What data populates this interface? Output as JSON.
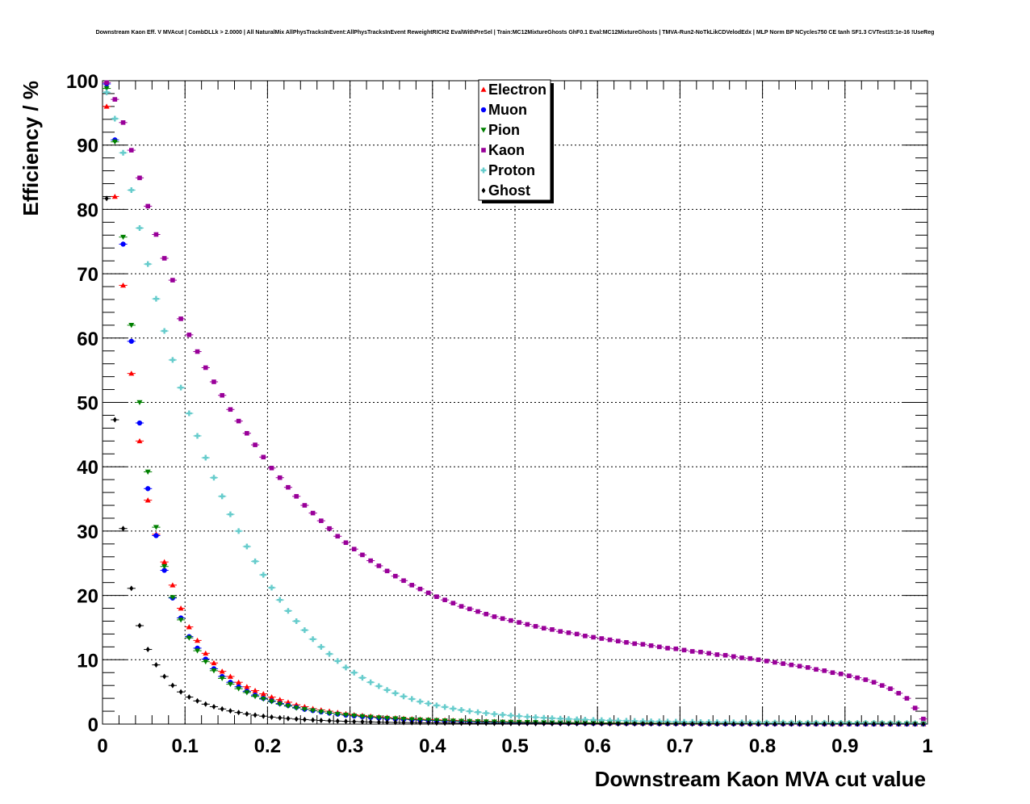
{
  "chart_data": {
    "type": "scatter",
    "title": "Downstream Kaon Eff. V MVAcut | CombDLLk > 2.0000 | All NaturalMix AllPhysTracksInEvent:AllPhysTracksInEvent ReweightRICH2 EvalWithPreSel | Train:MC12MixtureGhosts GhF0.1 Eval:MC12MixtureGhosts | TMVA-Run2-NoTkLikCDVelodEdx | MLP Norm BP NCycles750 CE tanh SF1.3 CVTest15:1e-16 !UseReg",
    "xlabel": "Downstream Kaon MVA cut value",
    "ylabel": "Efficiency / %",
    "xlim": [
      0,
      1
    ],
    "ylim": [
      0,
      100
    ],
    "xticks": [
      "0",
      "0.1",
      "0.2",
      "0.3",
      "0.4",
      "0.5",
      "0.6",
      "0.7",
      "0.8",
      "0.9",
      "1"
    ],
    "yticks": [
      "0",
      "10",
      "20",
      "30",
      "40",
      "50",
      "60",
      "70",
      "80",
      "90",
      "100"
    ],
    "grid": true,
    "legend_position": "top-center",
    "x": [
      0.005,
      0.015,
      0.025,
      0.035,
      0.045,
      0.055,
      0.065,
      0.075,
      0.085,
      0.095,
      0.105,
      0.115,
      0.125,
      0.135,
      0.145,
      0.155,
      0.165,
      0.175,
      0.185,
      0.195,
      0.205,
      0.215,
      0.225,
      0.235,
      0.245,
      0.255,
      0.265,
      0.275,
      0.285,
      0.295,
      0.305,
      0.315,
      0.325,
      0.335,
      0.345,
      0.355,
      0.365,
      0.375,
      0.385,
      0.395,
      0.405,
      0.415,
      0.425,
      0.435,
      0.445,
      0.455,
      0.465,
      0.475,
      0.485,
      0.495,
      0.505,
      0.515,
      0.525,
      0.535,
      0.545,
      0.555,
      0.565,
      0.575,
      0.585,
      0.595,
      0.605,
      0.615,
      0.625,
      0.635,
      0.645,
      0.655,
      0.665,
      0.675,
      0.685,
      0.695,
      0.705,
      0.715,
      0.725,
      0.735,
      0.745,
      0.755,
      0.765,
      0.775,
      0.785,
      0.795,
      0.805,
      0.815,
      0.825,
      0.835,
      0.845,
      0.855,
      0.865,
      0.875,
      0.885,
      0.895,
      0.905,
      0.915,
      0.925,
      0.935,
      0.945,
      0.955,
      0.965,
      0.975,
      0.985,
      0.995
    ],
    "series": [
      {
        "name": "Electron",
        "color": "#ff0000",
        "marker": "triangle-up",
        "values": [
          96.0,
          82.0,
          68.2,
          54.5,
          44.0,
          34.8,
          29.5,
          25.2,
          21.6,
          18.0,
          15.1,
          13.0,
          11.0,
          9.5,
          8.2,
          7.4,
          6.5,
          5.8,
          5.2,
          4.7,
          4.2,
          3.8,
          3.4,
          3.0,
          2.7,
          2.4,
          2.2,
          2.0,
          1.8,
          1.6,
          1.45,
          1.33,
          1.22,
          1.12,
          1.03,
          0.95,
          0.88,
          0.82,
          0.76,
          0.71,
          0.66,
          0.62,
          0.58,
          0.54,
          0.5,
          0.47,
          0.44,
          0.41,
          0.38,
          0.36,
          0.34,
          0.32,
          0.3,
          0.28,
          0.26,
          0.25,
          0.24,
          0.22,
          0.21,
          0.2,
          0.19,
          0.18,
          0.17,
          0.16,
          0.16,
          0.15,
          0.14,
          0.14,
          0.13,
          0.13,
          0.12,
          0.12,
          0.11,
          0.11,
          0.1,
          0.1,
          0.1,
          0.09,
          0.09,
          0.09,
          0.08,
          0.08,
          0.08,
          0.08,
          0.07,
          0.07,
          0.07,
          0.07,
          0.06,
          0.06,
          0.06,
          0.06,
          0.05,
          0.05,
          0.05,
          0.05,
          0.04,
          0.04,
          0.03,
          0.02
        ]
      },
      {
        "name": "Muon",
        "color": "#0000ff",
        "marker": "circle",
        "values": [
          99.5,
          90.8,
          74.6,
          59.5,
          46.8,
          36.6,
          29.3,
          23.9,
          19.6,
          16.5,
          13.6,
          11.8,
          10.1,
          8.6,
          7.4,
          6.5,
          5.8,
          5.1,
          4.5,
          4.0,
          3.6,
          3.2,
          2.9,
          2.6,
          2.3,
          2.1,
          1.9,
          1.7,
          1.55,
          1.4,
          1.27,
          1.15,
          1.05,
          0.96,
          0.88,
          0.8,
          0.73,
          0.67,
          0.62,
          0.57,
          0.52,
          0.48,
          0.44,
          0.41,
          0.38,
          0.35,
          0.32,
          0.3,
          0.28,
          0.26,
          0.24,
          0.22,
          0.21,
          0.2,
          0.18,
          0.17,
          0.16,
          0.15,
          0.14,
          0.13,
          0.12,
          0.12,
          0.11,
          0.1,
          0.1,
          0.09,
          0.09,
          0.08,
          0.08,
          0.07,
          0.07,
          0.07,
          0.06,
          0.06,
          0.06,
          0.05,
          0.05,
          0.05,
          0.05,
          0.04,
          0.04,
          0.04,
          0.04,
          0.04,
          0.03,
          0.03,
          0.03,
          0.03,
          0.03,
          0.03,
          0.02,
          0.02,
          0.02,
          0.02,
          0.02,
          0.02,
          0.02,
          0.01,
          0.01,
          0.01
        ]
      },
      {
        "name": "Pion",
        "color": "#008000",
        "marker": "triangle-down",
        "values": [
          98.8,
          90.5,
          75.7,
          62.0,
          50.0,
          39.2,
          30.6,
          24.5,
          19.7,
          16.2,
          13.4,
          11.4,
          9.7,
          8.3,
          7.1,
          6.2,
          5.5,
          4.9,
          4.3,
          3.9,
          3.5,
          3.1,
          2.8,
          2.5,
          2.3,
          2.1,
          1.9,
          1.7,
          1.55,
          1.42,
          1.3,
          1.19,
          1.09,
          1.0,
          0.92,
          0.85,
          0.78,
          0.72,
          0.67,
          0.62,
          0.57,
          0.53,
          0.49,
          0.46,
          0.43,
          0.4,
          0.37,
          0.35,
          0.33,
          0.31,
          0.29,
          0.27,
          0.26,
          0.24,
          0.23,
          0.22,
          0.21,
          0.2,
          0.19,
          0.18,
          0.17,
          0.16,
          0.15,
          0.15,
          0.14,
          0.13,
          0.13,
          0.12,
          0.12,
          0.11,
          0.11,
          0.1,
          0.1,
          0.1,
          0.09,
          0.09,
          0.09,
          0.08,
          0.08,
          0.08,
          0.08,
          0.07,
          0.07,
          0.07,
          0.07,
          0.06,
          0.06,
          0.06,
          0.06,
          0.06,
          0.05,
          0.05,
          0.05,
          0.05,
          0.05,
          0.04,
          0.04,
          0.04,
          0.03,
          0.02
        ]
      },
      {
        "name": "Kaon",
        "color": "#990099",
        "marker": "square",
        "values": [
          99.7,
          97.1,
          93.5,
          89.2,
          84.9,
          80.5,
          76.1,
          72.4,
          69.0,
          63.0,
          60.5,
          57.9,
          55.4,
          53.2,
          51.1,
          48.9,
          47.1,
          45.2,
          43.4,
          41.5,
          39.8,
          38.3,
          36.8,
          35.4,
          34.0,
          32.8,
          31.6,
          30.4,
          29.2,
          28.2,
          27.2,
          26.3,
          25.4,
          24.6,
          23.8,
          23.0,
          22.3,
          21.6,
          21.0,
          20.4,
          19.8,
          19.3,
          18.8,
          18.3,
          17.9,
          17.5,
          17.1,
          16.7,
          16.4,
          16.1,
          15.8,
          15.5,
          15.2,
          14.9,
          14.7,
          14.4,
          14.2,
          14.0,
          13.7,
          13.5,
          13.3,
          13.1,
          12.9,
          12.7,
          12.5,
          12.4,
          12.2,
          12.0,
          11.8,
          11.7,
          11.5,
          11.3,
          11.2,
          11.0,
          10.8,
          10.7,
          10.5,
          10.3,
          10.2,
          10.0,
          9.8,
          9.6,
          9.4,
          9.2,
          9.0,
          8.8,
          8.5,
          8.3,
          8.0,
          7.8,
          7.5,
          7.2,
          6.9,
          6.5,
          6.0,
          5.5,
          4.8,
          4.0,
          2.5,
          0.8
        ]
      },
      {
        "name": "Proton",
        "color": "#66cccc",
        "marker": "cross",
        "values": [
          98.2,
          94.1,
          88.8,
          83.0,
          77.1,
          71.5,
          66.1,
          61.1,
          56.6,
          52.3,
          48.3,
          44.8,
          41.4,
          38.3,
          35.4,
          32.6,
          30.0,
          27.6,
          25.3,
          23.2,
          21.2,
          19.3,
          17.6,
          16.0,
          14.6,
          13.2,
          12.0,
          10.9,
          9.8,
          8.8,
          8.0,
          7.2,
          6.5,
          5.9,
          5.3,
          4.8,
          4.3,
          3.9,
          3.5,
          3.2,
          2.9,
          2.65,
          2.4,
          2.2,
          2.0,
          1.85,
          1.7,
          1.56,
          1.44,
          1.33,
          1.23,
          1.14,
          1.06,
          0.98,
          0.91,
          0.85,
          0.79,
          0.74,
          0.69,
          0.65,
          0.61,
          0.57,
          0.54,
          0.51,
          0.48,
          0.45,
          0.43,
          0.41,
          0.39,
          0.37,
          0.35,
          0.34,
          0.32,
          0.31,
          0.3,
          0.29,
          0.28,
          0.27,
          0.26,
          0.25,
          0.24,
          0.23,
          0.23,
          0.22,
          0.21,
          0.21,
          0.2,
          0.2,
          0.19,
          0.19,
          0.18,
          0.18,
          0.17,
          0.17,
          0.16,
          0.16,
          0.15,
          0.14,
          0.12,
          0.08
        ]
      },
      {
        "name": "Ghost",
        "color": "#000000",
        "marker": "diamond",
        "values": [
          81.7,
          47.3,
          30.4,
          21.1,
          15.3,
          11.6,
          9.2,
          7.4,
          6.0,
          5.0,
          4.2,
          3.6,
          3.1,
          2.7,
          2.35,
          2.05,
          1.8,
          1.58,
          1.39,
          1.23,
          1.09,
          0.97,
          0.87,
          0.78,
          0.7,
          0.63,
          0.57,
          0.52,
          0.47,
          0.43,
          0.39,
          0.36,
          0.33,
          0.3,
          0.28,
          0.26,
          0.24,
          0.22,
          0.2,
          0.19,
          0.18,
          0.16,
          0.15,
          0.14,
          0.13,
          0.12,
          0.12,
          0.11,
          0.1,
          0.1,
          0.09,
          0.09,
          0.08,
          0.08,
          0.07,
          0.07,
          0.07,
          0.06,
          0.06,
          0.06,
          0.05,
          0.05,
          0.05,
          0.05,
          0.04,
          0.04,
          0.04,
          0.04,
          0.04,
          0.03,
          0.03,
          0.03,
          0.03,
          0.03,
          0.03,
          0.03,
          0.02,
          0.02,
          0.02,
          0.02,
          0.02,
          0.02,
          0.02,
          0.02,
          0.02,
          0.02,
          0.01,
          0.01,
          0.01,
          0.01,
          0.01,
          0.01,
          0.01,
          0.01,
          0.01,
          0.01,
          0.01,
          0.01,
          0.01,
          0.01
        ]
      }
    ]
  }
}
